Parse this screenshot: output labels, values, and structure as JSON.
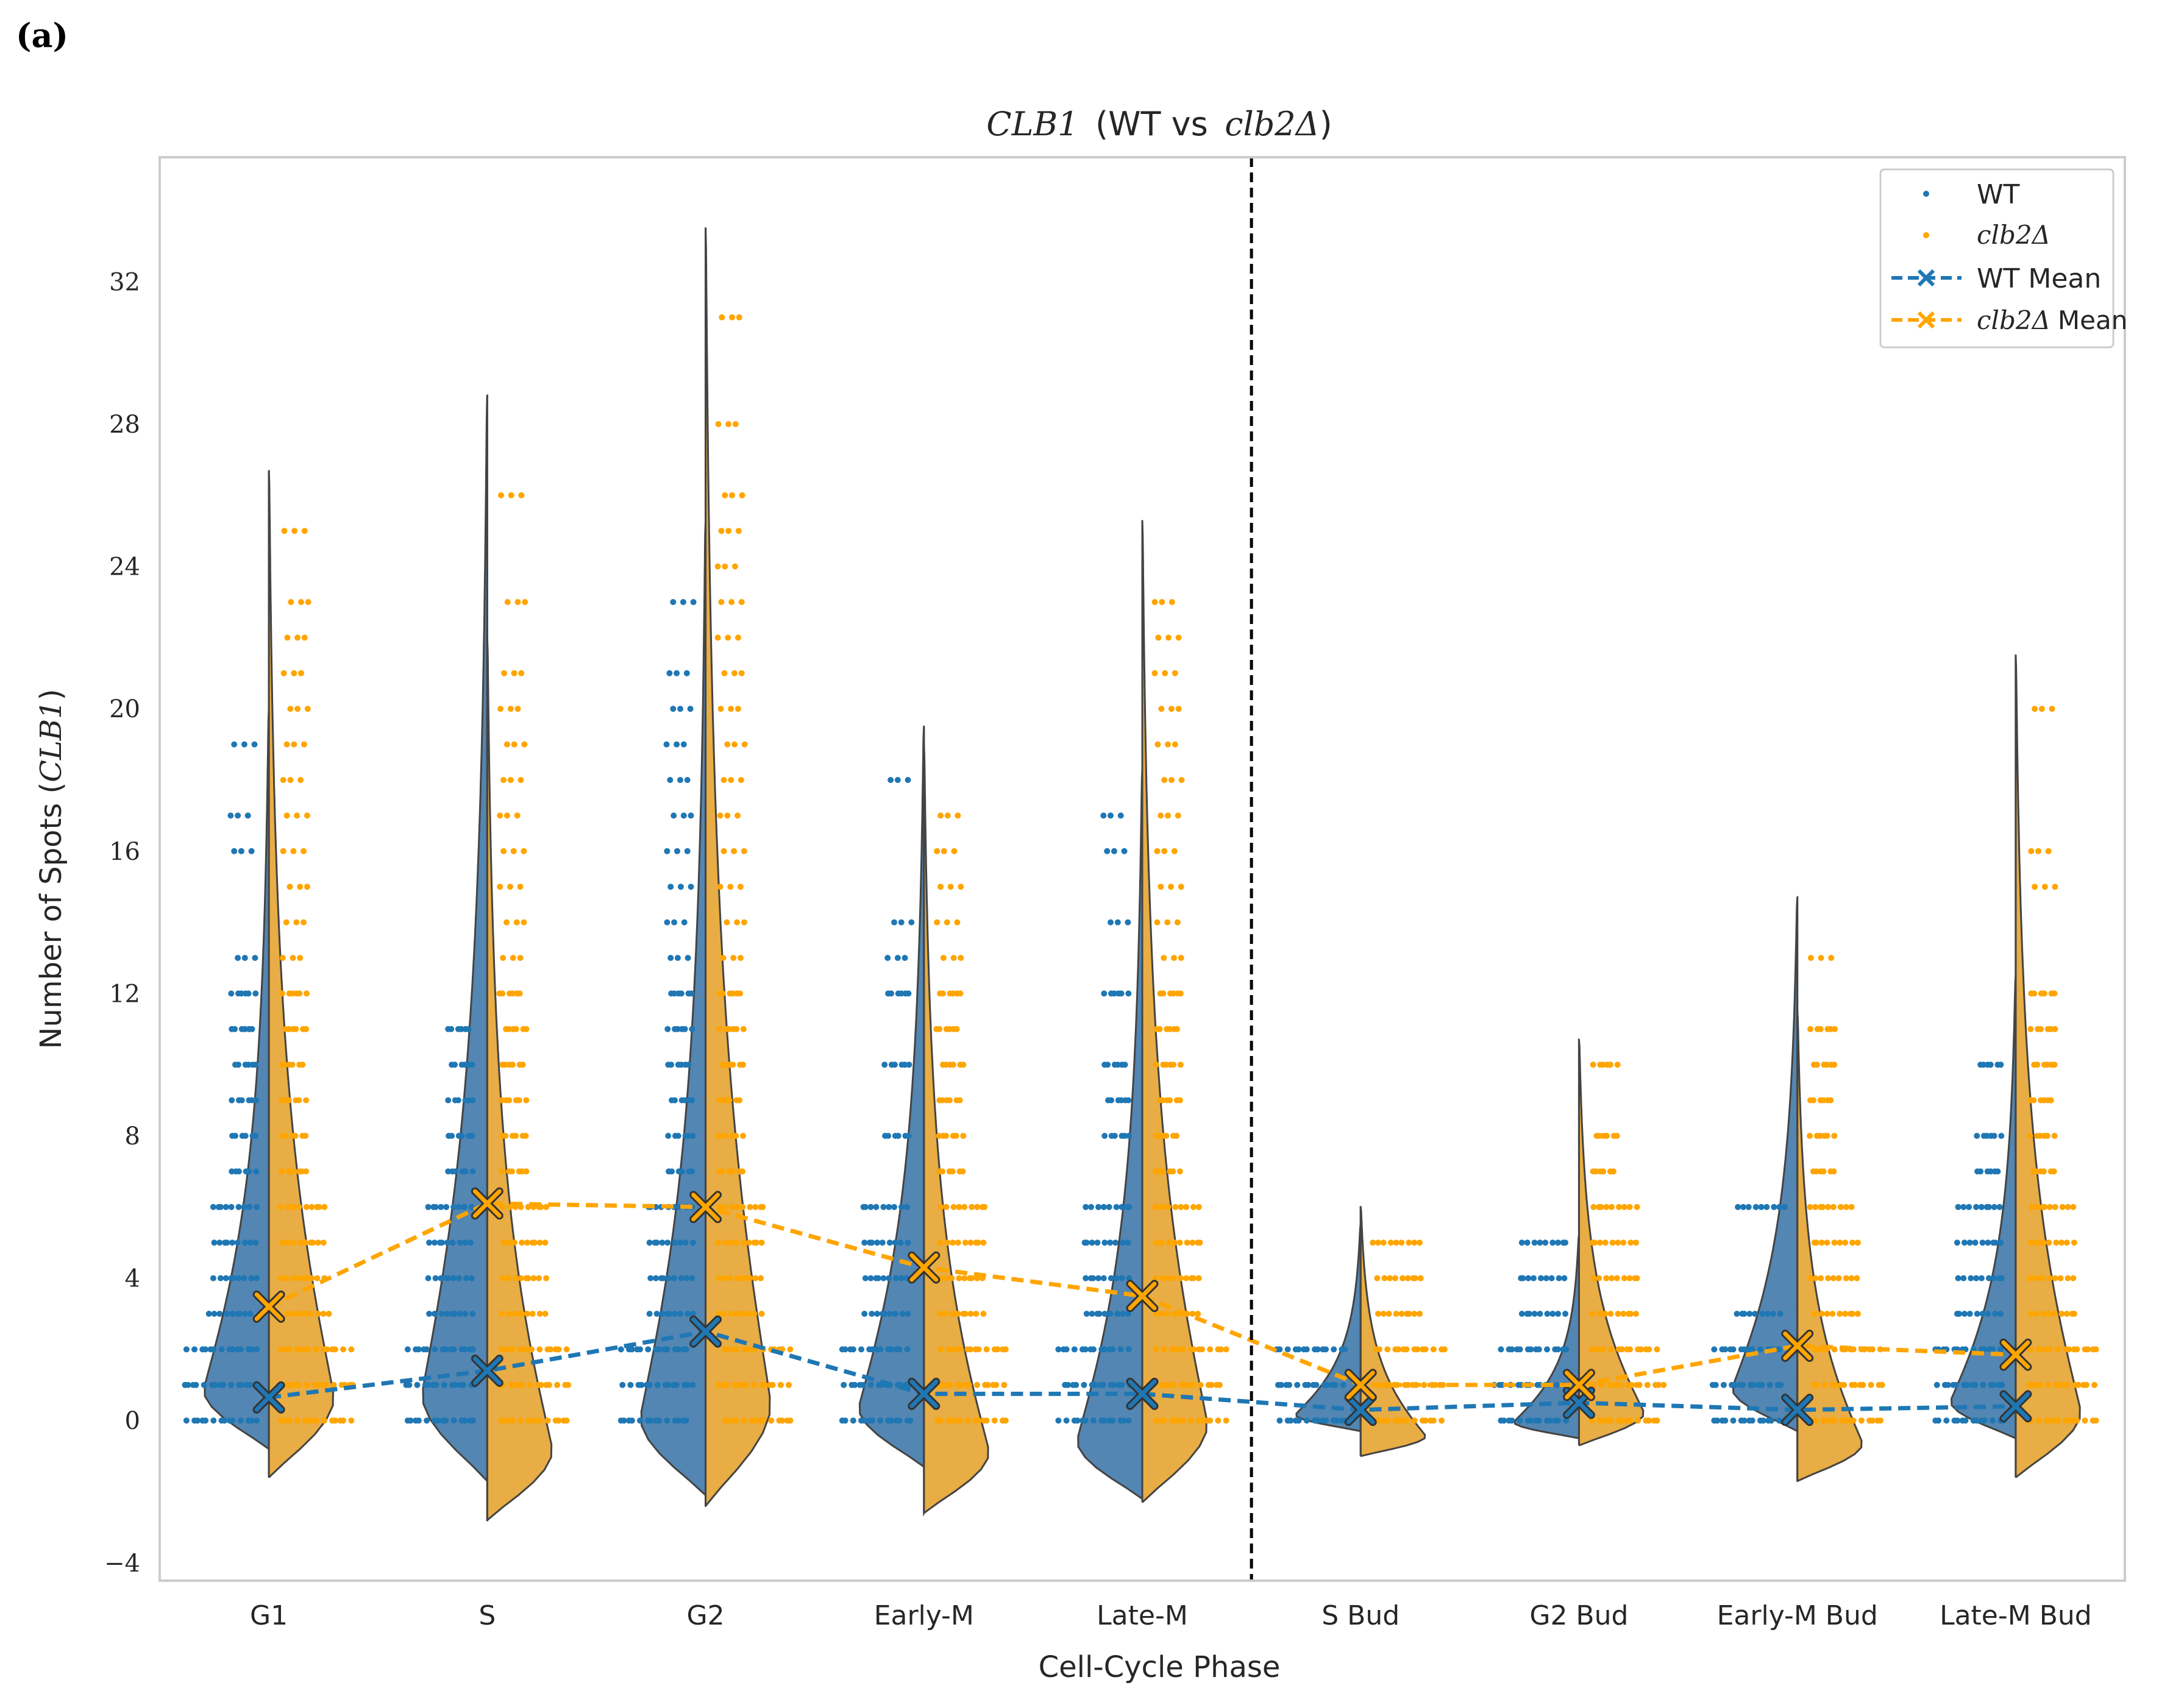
{
  "panel_label": "(a)",
  "chart_data": {
    "type": "violin",
    "title_gene": "CLB1",
    "title_rest": "(WT vs",
    "title_mut": "clb2Δ",
    "title_close": ")",
    "xlabel": "Cell-Cycle Phase",
    "ylabel_prefix": "Number of Spots (",
    "ylabel_gene": "CLB1",
    "ylabel_suffix": ")",
    "ylim": [
      -4.5,
      35.5
    ],
    "yticks": [
      -4,
      0,
      4,
      8,
      12,
      16,
      20,
      24,
      28,
      32
    ],
    "ytick_labels": [
      "−4",
      "0",
      "4",
      "8",
      "12",
      "16",
      "20",
      "24",
      "28",
      "32"
    ],
    "grid": false,
    "legend_position": "top-right",
    "divider_after_index": 4,
    "categories": [
      "G1",
      "S",
      "G2",
      "Early-M",
      "Late-M",
      "S Bud",
      "G2 Bud",
      "Early-M Bud",
      "Late-M Bud"
    ],
    "legend": {
      "wt": "WT",
      "mut": "clb2Δ",
      "wt_mean": "WT Mean",
      "mut_mean_prefix": "clb2Δ",
      "mut_mean_suffix": "Mean"
    },
    "colors": {
      "wt": "#1f77b4",
      "mut": "#ffa500",
      "wt_violin": "#4a7fae",
      "mut_violin": "#e7a93a",
      "axis": "#cccccc",
      "text": "#262626"
    },
    "series": [
      {
        "name": "WT",
        "means": [
          0.65,
          1.4,
          2.5,
          0.75,
          0.75,
          0.3,
          0.5,
          0.3,
          0.4
        ],
        "violin_min": [
          -0.8,
          -1.7,
          -2.1,
          -1.3,
          -2.2,
          -0.3,
          -0.5,
          -0.3,
          -0.5
        ],
        "violin_max": [
          20,
          28.8,
          25.3,
          19.5,
          18.3,
          5.5,
          5.2,
          14.7,
          12.5
        ],
        "points": [
          [
            0,
            1,
            2,
            3,
            4,
            5,
            6,
            7,
            8,
            9,
            10,
            11,
            12,
            13,
            16,
            17,
            19
          ],
          [
            0,
            1,
            2,
            3,
            4,
            5,
            6,
            7,
            8,
            9,
            10,
            11
          ],
          [
            0,
            1,
            2,
            3,
            4,
            5,
            6,
            7,
            8,
            9,
            10,
            11,
            12,
            13,
            14,
            15,
            16,
            17,
            18,
            19,
            20,
            21,
            23
          ],
          [
            0,
            1,
            2,
            3,
            4,
            5,
            6,
            8,
            10,
            12,
            13,
            14,
            18
          ],
          [
            0,
            1,
            2,
            3,
            4,
            5,
            6,
            8,
            9,
            10,
            12,
            14,
            16,
            17
          ],
          [
            0,
            1,
            2
          ],
          [
            0,
            1,
            2,
            3,
            4,
            5
          ],
          [
            0,
            1,
            2,
            3,
            6
          ],
          [
            0,
            1,
            2,
            3,
            4,
            5,
            6,
            7,
            8,
            10
          ]
        ]
      },
      {
        "name": "clb2Δ",
        "means": [
          3.2,
          6.1,
          6.0,
          4.3,
          3.5,
          1.0,
          1.0,
          2.1,
          1.85
        ],
        "violin_min": [
          -1.6,
          -2.8,
          -2.4,
          -2.6,
          -2.3,
          -1.0,
          -0.7,
          -1.7,
          -1.6
        ],
        "violin_max": [
          26.7,
          22.0,
          33.5,
          19.0,
          25.3,
          6.0,
          10.7,
          11.5,
          21.5
        ],
        "points": [
          [
            0,
            1,
            2,
            3,
            4,
            5,
            6,
            7,
            8,
            9,
            10,
            11,
            12,
            13,
            14,
            15,
            16,
            17,
            18,
            19,
            20,
            21,
            22,
            23,
            25
          ],
          [
            0,
            1,
            2,
            3,
            4,
            5,
            6,
            7,
            8,
            9,
            10,
            11,
            12,
            13,
            14,
            15,
            16,
            17,
            18,
            19,
            20,
            21,
            23,
            26
          ],
          [
            0,
            1,
            2,
            3,
            4,
            5,
            6,
            7,
            8,
            9,
            10,
            11,
            12,
            13,
            14,
            15,
            16,
            17,
            18,
            19,
            20,
            21,
            22,
            23,
            24,
            25,
            26,
            28,
            31
          ],
          [
            0,
            1,
            2,
            3,
            4,
            5,
            6,
            7,
            8,
            9,
            10,
            11,
            12,
            13,
            14,
            15,
            16,
            17
          ],
          [
            0,
            1,
            2,
            3,
            4,
            5,
            6,
            7,
            8,
            9,
            10,
            11,
            12,
            13,
            14,
            15,
            16,
            17,
            18,
            19,
            20,
            21,
            22,
            23
          ],
          [
            0,
            1,
            2,
            3,
            4,
            5
          ],
          [
            0,
            1,
            2,
            3,
            4,
            5,
            6,
            7,
            8,
            10
          ],
          [
            0,
            1,
            2,
            3,
            4,
            5,
            6,
            7,
            8,
            9,
            10,
            11,
            13
          ],
          [
            0,
            1,
            2,
            3,
            4,
            5,
            6,
            7,
            8,
            9,
            10,
            11,
            12,
            15,
            16,
            20
          ]
        ]
      }
    ]
  }
}
